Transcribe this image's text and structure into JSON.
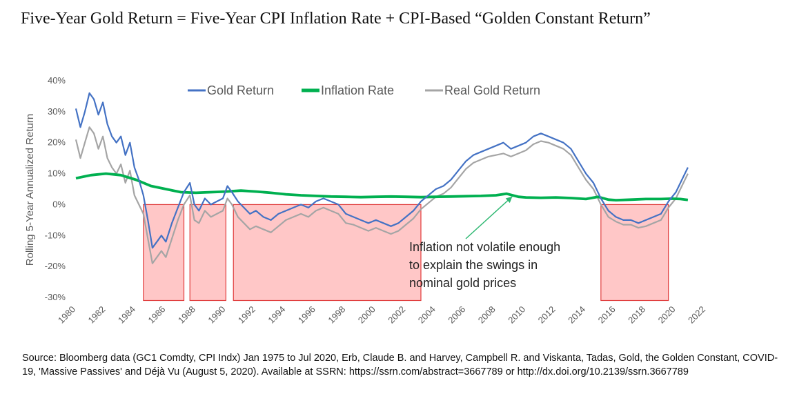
{
  "title": "Five-Year Gold Return = Five-Year CPI Inflation Rate + CPI-Based “Golden Constant Return”",
  "source": "Source: Bloomberg data (GC1 Comdty, CPI Indx) Jan 1975 to Jul 2020, Erb, Claude B. and Harvey, Campbell R. and Viskanta, Tadas, Gold, the Golden Constant, COVID-19, 'Massive Passives' and Déjà Vu (August 5, 2020). Available at SSRN: https://ssrn.com/abstract=3667789 or http://dx.doi.org/10.2139/ssrn.3667789",
  "colors": {
    "gold": "#4472C4",
    "inflation": "#00B050",
    "real": "#A5A5A5",
    "shade_fill": "#FFC7C7",
    "shade_border": "#E03C3C",
    "arrow": "#2EB872"
  },
  "chart_data": {
    "type": "line",
    "ylabel": "Rolling 5-Year Annualized Return",
    "xlim": [
      1980,
      2022
    ],
    "ylim": [
      -30,
      40
    ],
    "x_ticks": [
      1980,
      1982,
      1984,
      1986,
      1988,
      1990,
      1992,
      1994,
      1996,
      1998,
      2000,
      2002,
      2004,
      2006,
      2008,
      2010,
      2012,
      2014,
      2016,
      2018,
      2020,
      2022
    ],
    "y_ticks": [
      -30,
      -20,
      -10,
      0,
      10,
      20,
      30,
      40
    ],
    "y_tick_format": "percent",
    "legend": {
      "position": "top-center"
    },
    "series": [
      {
        "name": "Gold Return",
        "x": [
          1980.0,
          1980.3,
          1980.6,
          1980.9,
          1981.2,
          1981.5,
          1981.8,
          1982.1,
          1982.4,
          1982.7,
          1983.0,
          1983.3,
          1983.6,
          1983.9,
          1984.2,
          1984.5,
          1984.8,
          1985.1,
          1985.4,
          1985.7,
          1986.0,
          1986.4,
          1986.8,
          1987.2,
          1987.6,
          1987.9,
          1988.2,
          1988.6,
          1989.0,
          1989.4,
          1989.8,
          1990.1,
          1990.4,
          1990.8,
          1991.2,
          1991.6,
          1992.0,
          1992.5,
          1993.0,
          1993.5,
          1994.0,
          1994.5,
          1995.0,
          1995.5,
          1996.0,
          1996.5,
          1997.0,
          1997.5,
          1998.0,
          1998.5,
          1999.0,
          1999.5,
          2000.0,
          2000.5,
          2001.0,
          2001.5,
          2002.0,
          2002.5,
          2003.0,
          2003.5,
          2004.0,
          2004.5,
          2005.0,
          2005.5,
          2006.0,
          2006.5,
          2007.0,
          2007.5,
          2008.0,
          2008.5,
          2009.0,
          2009.5,
          2010.0,
          2010.5,
          2011.0,
          2011.5,
          2012.0,
          2012.5,
          2013.0,
          2013.5,
          2014.0,
          2014.5,
          2015.0,
          2015.5,
          2016.0,
          2016.5,
          2017.0,
          2017.5,
          2018.0,
          2018.5,
          2019.0,
          2019.5,
          2020.0,
          2020.4,
          2020.8
        ],
        "values": [
          31,
          25,
          30,
          36,
          34,
          29,
          33,
          26,
          22,
          20,
          22,
          16,
          20,
          12,
          8,
          3,
          -5,
          -14,
          -12,
          -10,
          -12,
          -6,
          -1,
          4,
          7,
          0,
          -2,
          2,
          0,
          1,
          2,
          6,
          4,
          1,
          -1,
          -3,
          -2,
          -4,
          -5,
          -3,
          -2,
          -1,
          0,
          -1,
          1,
          2,
          1,
          0,
          -3,
          -4,
          -5,
          -6,
          -5,
          -6,
          -7,
          -6,
          -4,
          -2,
          1,
          3,
          5,
          6,
          8,
          11,
          14,
          16,
          17,
          18,
          19,
          20,
          18,
          19,
          20,
          22,
          23,
          22,
          21,
          20,
          18,
          14,
          10,
          7,
          2,
          -2,
          -4,
          -5,
          -5,
          -6,
          -5,
          -4,
          -3,
          1,
          4,
          8,
          12
        ]
      },
      {
        "name": "Inflation Rate",
        "x": [
          1980.0,
          1981.0,
          1982.0,
          1983.0,
          1984.0,
          1985.0,
          1986.0,
          1987.0,
          1988.0,
          1989.0,
          1990.0,
          1991.0,
          1992.0,
          1993.0,
          1994.0,
          1995.0,
          1996.0,
          1997.0,
          1998.0,
          1999.0,
          2000.0,
          2001.0,
          2002.0,
          2003.0,
          2004.0,
          2005.0,
          2006.0,
          2007.0,
          2008.0,
          2008.7,
          2009.5,
          2010.0,
          2011.0,
          2012.0,
          2013.0,
          2014.0,
          2014.8,
          2015.5,
          2016.0,
          2017.0,
          2018.0,
          2019.0,
          2019.7,
          2020.3,
          2020.8
        ],
        "values": [
          8.5,
          9.5,
          10,
          9.5,
          8,
          6,
          5,
          4,
          3.8,
          4,
          4.2,
          4.5,
          4.2,
          3.8,
          3.3,
          3.0,
          2.8,
          2.6,
          2.5,
          2.4,
          2.5,
          2.6,
          2.5,
          2.4,
          2.5,
          2.6,
          2.7,
          2.8,
          3.0,
          3.5,
          2.5,
          2.3,
          2.2,
          2.3,
          2.1,
          1.8,
          2.5,
          1.6,
          1.4,
          1.6,
          1.8,
          1.8,
          1.9,
          1.8,
          1.5
        ]
      },
      {
        "name": "Real Gold Return",
        "x": [
          1980.0,
          1980.3,
          1980.6,
          1980.9,
          1981.2,
          1981.5,
          1981.8,
          1982.1,
          1982.4,
          1982.7,
          1983.0,
          1983.3,
          1983.6,
          1983.9,
          1984.2,
          1984.5,
          1984.8,
          1985.1,
          1985.4,
          1985.7,
          1986.0,
          1986.4,
          1986.8,
          1987.2,
          1987.6,
          1987.9,
          1988.2,
          1988.6,
          1989.0,
          1989.4,
          1989.8,
          1990.1,
          1990.4,
          1990.8,
          1991.2,
          1991.6,
          1992.0,
          1992.5,
          1993.0,
          1993.5,
          1994.0,
          1994.5,
          1995.0,
          1995.5,
          1996.0,
          1996.5,
          1997.0,
          1997.5,
          1998.0,
          1998.5,
          1999.0,
          1999.5,
          2000.0,
          2000.5,
          2001.0,
          2001.5,
          2002.0,
          2002.5,
          2003.0,
          2003.5,
          2004.0,
          2004.5,
          2005.0,
          2005.5,
          2006.0,
          2006.5,
          2007.0,
          2007.5,
          2008.0,
          2008.5,
          2009.0,
          2009.5,
          2010.0,
          2010.5,
          2011.0,
          2011.5,
          2012.0,
          2012.5,
          2013.0,
          2013.5,
          2014.0,
          2014.5,
          2015.0,
          2015.5,
          2016.0,
          2016.5,
          2017.0,
          2017.5,
          2018.0,
          2018.5,
          2019.0,
          2019.5,
          2020.0,
          2020.4,
          2020.8
        ],
        "values": [
          21,
          15,
          20,
          25,
          23,
          18,
          22,
          15,
          12,
          10,
          13,
          7,
          11,
          3,
          0,
          -3,
          -11,
          -19,
          -17,
          -15,
          -17,
          -11,
          -5,
          0,
          3,
          -5,
          -6,
          -2,
          -4,
          -3,
          -2,
          2,
          0,
          -4,
          -6,
          -8,
          -7,
          -8,
          -9,
          -7,
          -5,
          -4,
          -3,
          -4,
          -2,
          -1,
          -2,
          -3,
          -6,
          -6.5,
          -7.5,
          -8.5,
          -7.5,
          -8.5,
          -9.5,
          -8.5,
          -6.5,
          -4.5,
          -1.5,
          0.5,
          2.5,
          3.5,
          5.5,
          8.5,
          11.5,
          13.5,
          14.5,
          15.5,
          16,
          16.5,
          15.5,
          16.5,
          17.5,
          19.5,
          20.5,
          20,
          19,
          18,
          16,
          12,
          8,
          5,
          0,
          -4,
          -5.5,
          -6.5,
          -6.5,
          -7.5,
          -7,
          -6,
          -5,
          -1,
          2,
          6,
          10
        ]
      }
    ],
    "shaded_regions": [
      {
        "x0": 1984.5,
        "x1": 1987.2,
        "y0": -31,
        "y1": 0
      },
      {
        "x0": 1987.6,
        "x1": 1990.0,
        "y0": -31,
        "y1": 0
      },
      {
        "x0": 1990.5,
        "x1": 2003.0,
        "y0": -31,
        "y1": 0
      },
      {
        "x0": 2015.0,
        "x1": 2019.5,
        "y0": -31,
        "y1": 0
      }
    ],
    "annotation": {
      "lines": [
        "Inflation not volatile enough",
        "to explain the swings in",
        "nominal gold prices"
      ],
      "arrow_to": {
        "x": 2009.0,
        "y": 3.5
      }
    }
  }
}
